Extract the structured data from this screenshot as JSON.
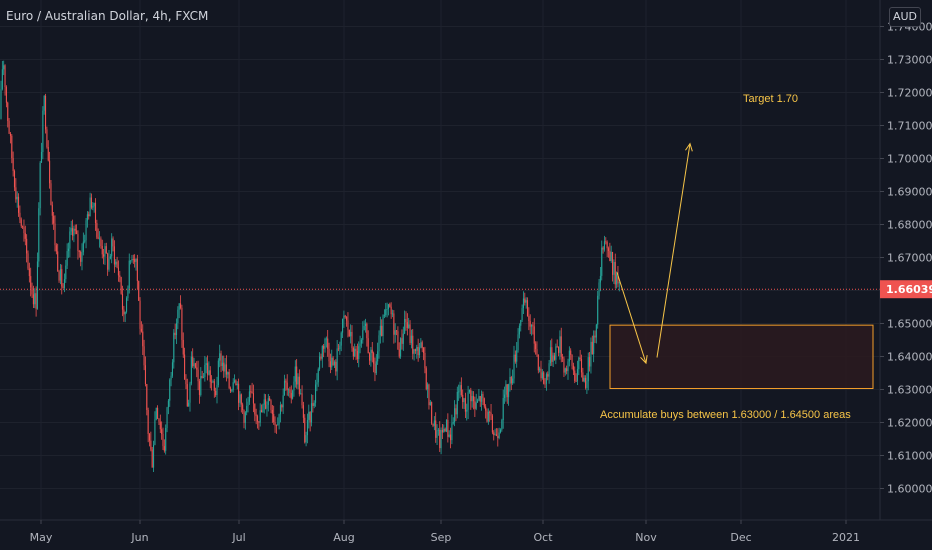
{
  "header": {
    "title": "Euro / Australian Dollar, 4h, FXCM",
    "currency": "AUD"
  },
  "colors": {
    "background": "#131722",
    "up": "#26a69a",
    "down": "#ef5350",
    "annotation": "#f7c548",
    "price_line": "#ef5350",
    "zone_border": "#f59f2a",
    "zone_fill": "#2b1a1f",
    "axis_text": "#b2b5be"
  },
  "chart_data": {
    "type": "candlestick",
    "title": "Euro / Australian Dollar, 4h, FXCM",
    "ylim": [
      1.594,
      1.745
    ],
    "y_ticks": [
      "1.60000",
      "1.61000",
      "1.62000",
      "1.63000",
      "1.64000",
      "1.65000",
      "1.66000",
      "1.67000",
      "1.68000",
      "1.69000",
      "1.70000",
      "1.71000",
      "1.72000",
      "1.73000",
      "1.74000"
    ],
    "x_ticks": [
      "May",
      "Jun",
      "Jul",
      "Aug",
      "Sep",
      "Oct",
      "Nov",
      "Dec",
      "2021"
    ],
    "last_price": "1.66039",
    "price_path": [
      [
        0,
        1.712
      ],
      [
        3,
        1.732
      ],
      [
        7,
        1.715
      ],
      [
        12,
        1.7
      ],
      [
        16,
        1.69
      ],
      [
        20,
        1.682
      ],
      [
        24,
        1.676
      ],
      [
        28,
        1.668
      ],
      [
        32,
        1.66
      ],
      [
        36,
        1.656
      ],
      [
        40,
        1.696
      ],
      [
        44,
        1.718
      ],
      [
        48,
        1.702
      ],
      [
        52,
        1.684
      ],
      [
        56,
        1.672
      ],
      [
        60,
        1.664
      ],
      [
        64,
        1.66
      ],
      [
        68,
        1.672
      ],
      [
        72,
        1.68
      ],
      [
        76,
        1.676
      ],
      [
        80,
        1.67
      ],
      [
        84,
        1.676
      ],
      [
        88,
        1.684
      ],
      [
        92,
        1.688
      ],
      [
        96,
        1.68
      ],
      [
        100,
        1.674
      ],
      [
        104,
        1.672
      ],
      [
        108,
        1.668
      ],
      [
        112,
        1.674
      ],
      [
        116,
        1.668
      ],
      [
        120,
        1.664
      ],
      [
        124,
        1.65
      ],
      [
        128,
        1.664
      ],
      [
        132,
        1.672
      ],
      [
        136,
        1.67
      ],
      [
        140,
        1.65
      ],
      [
        144,
        1.636
      ],
      [
        148,
        1.618
      ],
      [
        152,
        1.608
      ],
      [
        156,
        1.626
      ],
      [
        160,
        1.62
      ],
      [
        164,
        1.612
      ],
      [
        168,
        1.626
      ],
      [
        172,
        1.64
      ],
      [
        176,
        1.65
      ],
      [
        180,
        1.656
      ],
      [
        184,
        1.636
      ],
      [
        188,
        1.624
      ],
      [
        192,
        1.64
      ],
      [
        196,
        1.634
      ],
      [
        200,
        1.63
      ],
      [
        205,
        1.638
      ],
      [
        210,
        1.634
      ],
      [
        215,
        1.628
      ],
      [
        220,
        1.64
      ],
      [
        225,
        1.636
      ],
      [
        230,
        1.63
      ],
      [
        235,
        1.636
      ],
      [
        240,
        1.626
      ],
      [
        245,
        1.622
      ],
      [
        250,
        1.628
      ],
      [
        255,
        1.624
      ],
      [
        260,
        1.622
      ],
      [
        265,
        1.626
      ],
      [
        270,
        1.628
      ],
      [
        275,
        1.62
      ],
      [
        280,
        1.624
      ],
      [
        285,
        1.632
      ],
      [
        290,
        1.626
      ],
      [
        295,
        1.636
      ],
      [
        300,
        1.63
      ],
      [
        305,
        1.615
      ],
      [
        310,
        1.622
      ],
      [
        315,
        1.63
      ],
      [
        320,
        1.64
      ],
      [
        325,
        1.646
      ],
      [
        330,
        1.64
      ],
      [
        335,
        1.636
      ],
      [
        340,
        1.646
      ],
      [
        345,
        1.652
      ],
      [
        350,
        1.646
      ],
      [
        355,
        1.64
      ],
      [
        360,
        1.642
      ],
      [
        365,
        1.648
      ],
      [
        370,
        1.64
      ],
      [
        375,
        1.636
      ],
      [
        380,
        1.646
      ],
      [
        385,
        1.652
      ],
      [
        390,
        1.654
      ],
      [
        395,
        1.648
      ],
      [
        400,
        1.642
      ],
      [
        405,
        1.652
      ],
      [
        410,
        1.646
      ],
      [
        415,
        1.64
      ],
      [
        420,
        1.644
      ],
      [
        425,
        1.636
      ],
      [
        430,
        1.624
      ],
      [
        435,
        1.618
      ],
      [
        440,
        1.614
      ],
      [
        445,
        1.62
      ],
      [
        450,
        1.616
      ],
      [
        455,
        1.624
      ],
      [
        460,
        1.63
      ],
      [
        465,
        1.624
      ],
      [
        470,
        1.63
      ],
      [
        475,
        1.624
      ],
      [
        480,
        1.628
      ],
      [
        485,
        1.624
      ],
      [
        490,
        1.62
      ],
      [
        495,
        1.616
      ],
      [
        500,
        1.62
      ],
      [
        505,
        1.628
      ],
      [
        510,
        1.632
      ],
      [
        515,
        1.64
      ],
      [
        520,
        1.652
      ],
      [
        525,
        1.656
      ],
      [
        530,
        1.65
      ],
      [
        535,
        1.644
      ],
      [
        540,
        1.636
      ],
      [
        545,
        1.632
      ],
      [
        550,
        1.64
      ],
      [
        555,
        1.642
      ],
      [
        560,
        1.644
      ],
      [
        565,
        1.636
      ],
      [
        570,
        1.64
      ],
      [
        575,
        1.634
      ],
      [
        580,
        1.638
      ],
      [
        585,
        1.632
      ],
      [
        590,
        1.64
      ],
      [
        595,
        1.648
      ],
      [
        600,
        1.664
      ],
      [
        604,
        1.678
      ],
      [
        608,
        1.672
      ],
      [
        612,
        1.668
      ],
      [
        616,
        1.664
      ],
      [
        620,
        1.66
      ]
    ],
    "annotations": [
      {
        "text": "Target 1.70",
        "price": 1.7183
      },
      {
        "text": "Accumulate buys between 1.63000 / 1.64500 areas",
        "price": 1.6226
      }
    ],
    "zone": {
      "price_top": 1.6495,
      "price_bottom": 1.6303
    },
    "arrows": [
      {
        "from": [
          617,
          1.6655
        ],
        "to": [
          646,
          1.638
        ]
      },
      {
        "from": [
          657,
          1.6397
        ],
        "to": [
          690,
          1.7045
        ]
      }
    ]
  }
}
